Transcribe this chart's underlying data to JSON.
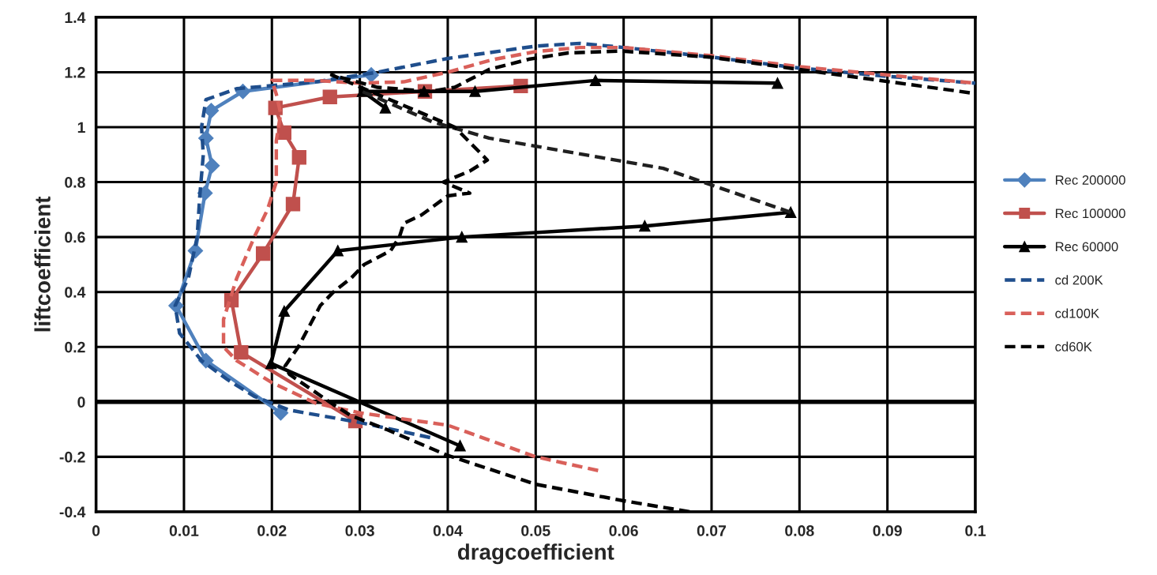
{
  "chart_data": {
    "type": "line",
    "xlabel": "dragcoefficient",
    "ylabel": "liftcoefficient",
    "xlim": [
      0,
      0.1
    ],
    "xticks": [
      0,
      0.01,
      0.02,
      0.03,
      0.04,
      0.05,
      0.06,
      0.07,
      0.08,
      0.09,
      0.1
    ],
    "ylim": [
      -0.4,
      1.4
    ],
    "yticks": [
      -0.4,
      -0.2,
      0,
      0.2,
      0.4,
      0.6,
      0.8,
      1,
      1.2,
      1.4
    ],
    "grid": true,
    "legend": "right",
    "ref_lines": [
      {
        "axis": "y",
        "value": 0,
        "color": "#000000"
      }
    ],
    "series": [
      {
        "name": "Rec 200000",
        "color": "#4f81bd",
        "marker": "diamond",
        "line_style": "solid",
        "x": [
          0.021,
          0.0125,
          0.0091,
          0.0113,
          0.0124,
          0.0132,
          0.0125,
          0.0131,
          0.0167,
          0.0313
        ],
        "values": [
          -0.04,
          0.15,
          0.35,
          0.55,
          0.76,
          0.86,
          0.96,
          1.06,
          1.13,
          1.19
        ]
      },
      {
        "name": "Rec 100000",
        "color": "#c0504d",
        "marker": "square",
        "line_style": "solid",
        "x": [
          0.0295,
          0.0165,
          0.0154,
          0.019,
          0.0224,
          0.0231,
          0.0214,
          0.0204,
          0.0266,
          0.0374,
          0.0483
        ],
        "values": [
          -0.07,
          0.18,
          0.37,
          0.54,
          0.72,
          0.89,
          0.98,
          1.07,
          1.11,
          1.13,
          1.15
        ]
      },
      {
        "name": "Rec 60000",
        "color": "#000000",
        "marker": "triangle",
        "line_style": "solid",
        "x": [
          0.0414,
          0.0199,
          0.0214,
          0.0275,
          0.0416,
          0.0624,
          0.079,
          null,
          0.0329,
          0.0303,
          0.0373,
          0.0431,
          0.0568,
          0.0775
        ],
        "values": [
          -0.16,
          0.14,
          0.33,
          0.55,
          0.6,
          0.64,
          0.69,
          null,
          1.07,
          1.13,
          1.13,
          1.13,
          1.17,
          1.16
        ]
      },
      {
        "color": "#202020",
        "marker": "none",
        "line_style": "dashed",
        "x": [
          0.079,
          0.0645,
          0.0447,
          0.0382,
          0.0303
        ],
        "values": [
          0.69,
          0.85,
          0.96,
          1.02,
          1.13
        ]
      },
      {
        "name": "cd 200K",
        "color": "#1f4e8c",
        "marker": "none",
        "line_style": "dashed",
        "x": [
          0.038,
          0.03,
          0.022,
          0.018,
          0.015,
          0.012,
          0.0095,
          0.009,
          0.0105,
          0.0115,
          0.0118,
          0.0122,
          0.012,
          0.0125,
          0.016,
          0.025,
          0.032,
          0.04,
          0.05,
          0.055,
          0.06,
          0.07,
          0.08,
          0.09,
          0.1
        ],
        "values": [
          -0.13,
          -0.075,
          -0.03,
          0.02,
          0.08,
          0.15,
          0.25,
          0.35,
          0.45,
          0.6,
          0.75,
          0.9,
          1.0,
          1.1,
          1.14,
          1.165,
          1.2,
          1.25,
          1.295,
          1.305,
          1.29,
          1.255,
          1.215,
          1.185,
          1.16
        ]
      },
      {
        "name": "cd100K",
        "color": "#d9605a",
        "marker": "none",
        "line_style": "dashed",
        "x": [
          0.0571,
          0.05,
          0.04,
          0.03,
          0.025,
          0.02,
          0.016,
          0.0145,
          0.0145,
          0.016,
          0.018,
          0.0195,
          0.0205,
          0.0205,
          0.021,
          0.0205,
          0.02,
          0.025,
          0.03,
          0.035,
          0.04,
          0.045,
          0.05,
          0.055,
          0.06,
          0.07,
          0.08,
          0.09,
          0.1
        ],
        "values": [
          -0.25,
          -0.2,
          -0.085,
          -0.04,
          -0.005,
          0.07,
          0.15,
          0.2,
          0.3,
          0.45,
          0.6,
          0.7,
          0.8,
          0.95,
          1.05,
          1.12,
          1.17,
          1.17,
          1.16,
          1.165,
          1.2,
          1.245,
          1.275,
          1.29,
          1.29,
          1.26,
          1.22,
          1.19,
          1.16
        ]
      },
      {
        "name": "cd60K",
        "color": "#000000",
        "marker": "none",
        "line_style": "dashed",
        "x": [
          0.0675,
          0.06,
          0.05,
          0.04,
          0.033,
          0.029,
          0.027,
          0.022,
          0.0215,
          0.023,
          0.0255,
          0.027,
          0.029,
          0.0305,
          0.0335,
          0.0345,
          0.035,
          0.037,
          0.04,
          0.0425,
          0.0395,
          0.0425,
          0.0445,
          0.0408,
          0.0268,
          0.032,
          0.038,
          0.0408,
          0.0447,
          0.0492,
          0.0537,
          0.0597,
          0.0698,
          0.08,
          0.0994
        ],
        "values": [
          -0.4,
          -0.36,
          -0.3,
          -0.195,
          -0.1,
          -0.05,
          -0.01,
          0.1,
          0.13,
          0.2,
          0.35,
          0.4,
          0.45,
          0.5,
          0.55,
          0.6,
          0.65,
          0.68,
          0.75,
          0.76,
          0.8,
          0.84,
          0.88,
          1.0,
          1.19,
          1.145,
          1.13,
          1.145,
          1.21,
          1.247,
          1.27,
          1.277,
          1.255,
          1.21,
          1.125
        ]
      }
    ]
  }
}
